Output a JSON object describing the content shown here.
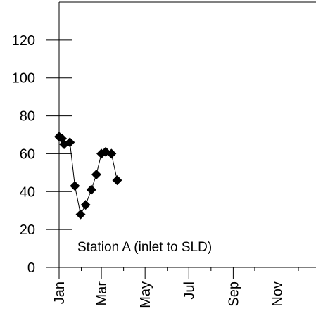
{
  "chart_data": {
    "type": "line",
    "title": "",
    "xlabel": "",
    "ylabel": "",
    "annotation": "Station A (inlet to SLD)",
    "x_tick_labels": [
      "Jan",
      "Mar",
      "May",
      "Jul",
      "Sep",
      "Nov"
    ],
    "x_tick_days": [
      0,
      59,
      120,
      181,
      243,
      304
    ],
    "x_range_days": [
      0,
      365
    ],
    "y_ticks": [
      0,
      20,
      40,
      60,
      80,
      100,
      120
    ],
    "ylim": [
      0,
      140
    ],
    "grid": false,
    "marker": "diamond",
    "colors": {
      "series": "#000000"
    },
    "series": [
      {
        "x": [
          "Jan 01",
          "Jan 05",
          "Jan 08",
          "Jan 16",
          "Jan 23",
          "Jan 31",
          "Feb 07",
          "Feb 15",
          "Feb 22",
          "Mar 01",
          "Mar 07",
          "Mar 15",
          "Mar 23"
        ],
        "x_days": [
          0,
          4,
          7,
          15,
          22,
          30,
          37,
          45,
          52,
          59,
          65,
          73,
          81
        ],
        "values": [
          69,
          68,
          65,
          66,
          43,
          28,
          33,
          41,
          49,
          60,
          61,
          60,
          46
        ]
      }
    ]
  }
}
